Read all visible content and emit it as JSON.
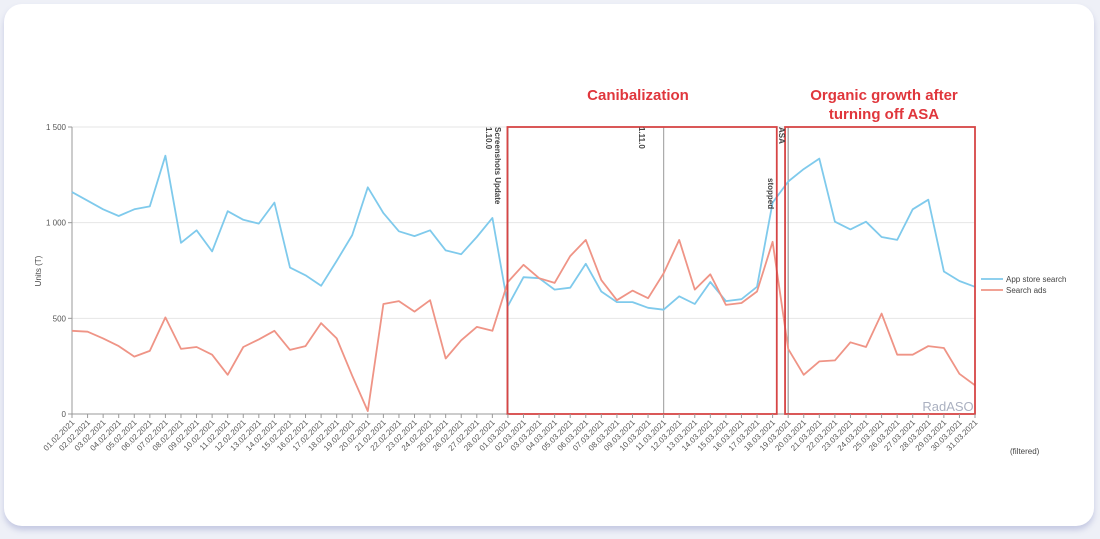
{
  "chart_data": {
    "type": "line",
    "ylabel": "Units (T)",
    "ylim": [
      0,
      1500
    ],
    "yticks": [
      "0",
      "500",
      "1 000",
      "1 500"
    ],
    "x": [
      "01.02.2021",
      "02.02.2021",
      "03.02.2021",
      "04.02.2021",
      "05.02.2021",
      "06.02.2021",
      "07.02.2021",
      "08.02.2021",
      "09.02.2021",
      "10.02.2021",
      "11.02.2021",
      "12.02.2021",
      "13.02.2021",
      "14.02.2021",
      "15.02.2021",
      "16.02.2021",
      "17.02.2021",
      "18.02.2021",
      "19.02.2021",
      "20.02.2021",
      "21.02.2021",
      "22.02.2021",
      "23.02.2021",
      "24.02.2021",
      "25.02.2021",
      "26.02.2021",
      "27.02.2021",
      "28.02.2021",
      "01.03.2021",
      "02.03.2021",
      "03.03.2021",
      "04.03.2021",
      "05.03.2021",
      "06.03.2021",
      "07.03.2021",
      "08.03.2021",
      "09.03.2021",
      "10.03.2021",
      "11.03.2021",
      "12.03.2021",
      "13.03.2021",
      "14.03.2021",
      "15.03.2021",
      "16.03.2021",
      "17.03.2021",
      "18.03.2021",
      "19.03.2021",
      "20.03.2021",
      "21.03.2021",
      "22.03.2021",
      "23.03.2021",
      "24.03.2021",
      "25.03.2021",
      "26.03.2021",
      "27.03.2021",
      "28.03.2021",
      "29.03.2021",
      "30.03.2021",
      "31.03.2021"
    ],
    "series": [
      {
        "name": "App store search",
        "color": "#7fcaec",
        "values": [
          1160,
          1115,
          1070,
          1035,
          1070,
          1085,
          1350,
          895,
          960,
          850,
          1060,
          1015,
          995,
          1105,
          765,
          725,
          670,
          800,
          935,
          1185,
          1050,
          955,
          930,
          960,
          855,
          835,
          925,
          1025,
          565,
          715,
          710,
          650,
          660,
          785,
          640,
          585,
          585,
          555,
          545,
          615,
          575,
          690,
          590,
          600,
          665,
          1105,
          1215,
          1280,
          1335,
          1005,
          965,
          1005,
          925,
          910,
          1070,
          1120,
          745,
          695,
          665
        ]
      },
      {
        "name": "Search ads",
        "color": "#ef9486",
        "values": [
          435,
          430,
          395,
          355,
          300,
          330,
          505,
          340,
          350,
          310,
          205,
          350,
          390,
          435,
          335,
          355,
          475,
          395,
          200,
          15,
          575,
          590,
          535,
          595,
          290,
          385,
          455,
          435,
          690,
          780,
          710,
          685,
          825,
          910,
          700,
          595,
          645,
          605,
          735,
          910,
          650,
          730,
          570,
          580,
          640,
          900,
          340,
          205,
          275,
          280,
          375,
          350,
          525,
          310,
          310,
          355,
          345,
          210,
          150
        ]
      }
    ],
    "annotations": {
      "canibalization": "Canibalization",
      "organic_line1": "Organic growth after",
      "organic_line2": "turning off ASA",
      "event1_line1": "Screenshots Update",
      "event1_line2": "1.10.0",
      "event2": "1.11.0",
      "event3_line1": "ASA",
      "event3_line2": "stopped"
    },
    "watermark": "RadASO",
    "filtered": "(filtered)",
    "grid": true,
    "legend": "right"
  }
}
